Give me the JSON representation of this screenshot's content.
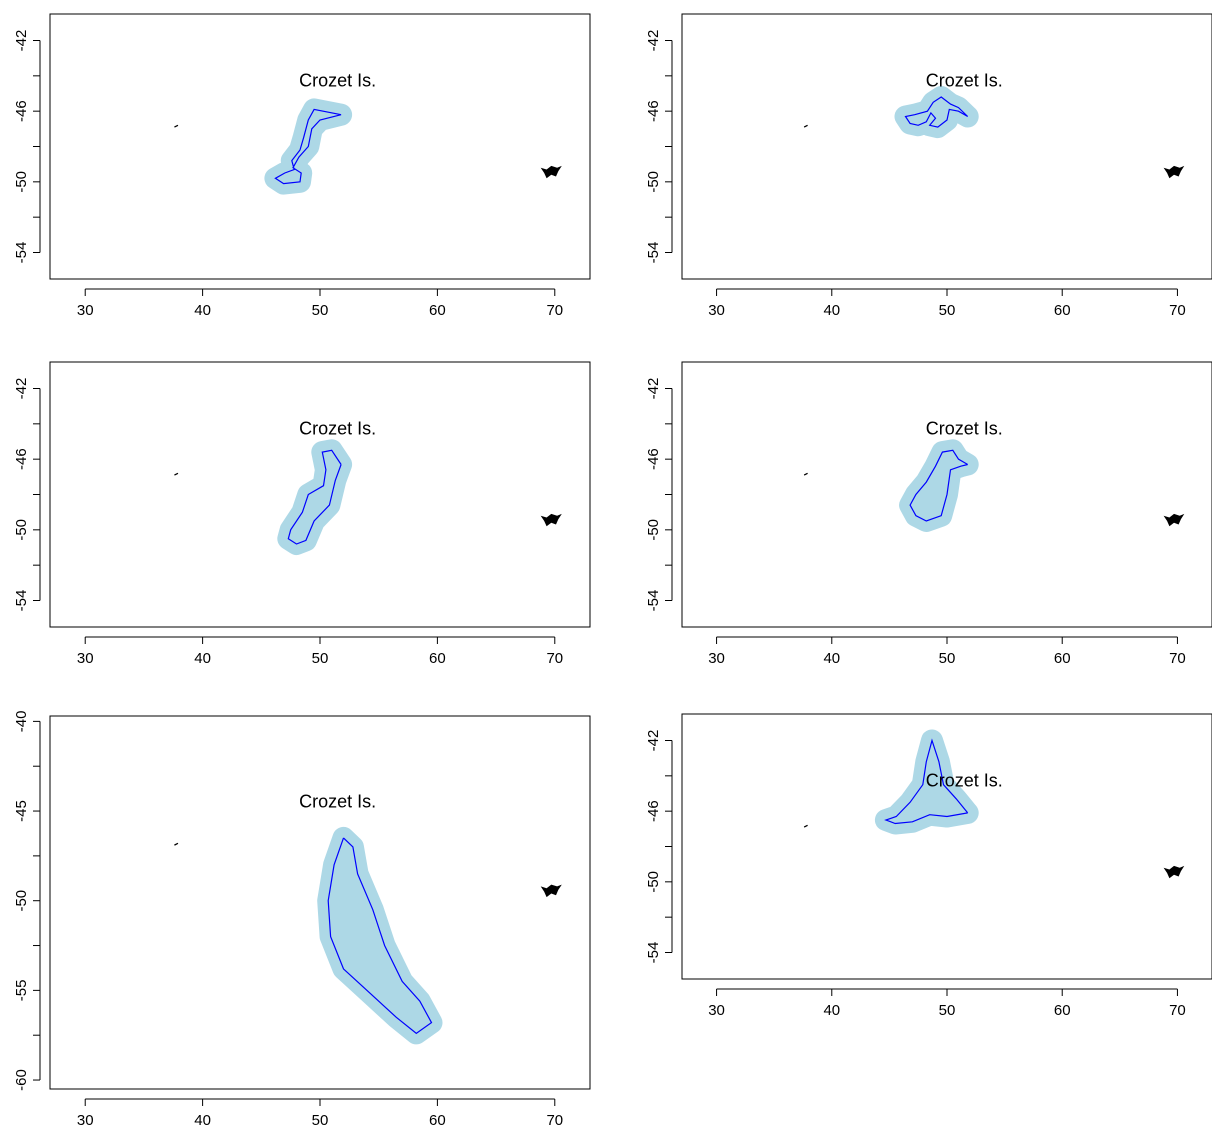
{
  "chart_data": [
    {
      "type": "map",
      "panel": "top-left",
      "xlim": [
        27,
        73
      ],
      "ylim": [
        -55.5,
        -40.5
      ],
      "x_ticks": [
        30,
        40,
        50,
        60,
        70
      ],
      "y_ticks": [
        -42,
        -46,
        -50,
        -54
      ],
      "annotation": {
        "text": "Crozet Is.",
        "lon": 51.5,
        "lat": -44.6
      },
      "buffer_color": "#add8e6",
      "track_color": "#0000ff",
      "island_color": "#000000",
      "track": [
        [
          51.8,
          -46.2
        ],
        [
          49.5,
          -45.9
        ],
        [
          49.0,
          -46.5
        ],
        [
          48.6,
          -47.5
        ],
        [
          48.3,
          -48.2
        ],
        [
          47.6,
          -48.8
        ],
        [
          47.8,
          -49.3
        ],
        [
          47.0,
          -49.5
        ],
        [
          46.2,
          -49.8
        ],
        [
          46.9,
          -50.1
        ],
        [
          48.3,
          -50.0
        ],
        [
          48.4,
          -49.5
        ],
        [
          47.7,
          -49.2
        ],
        [
          48.2,
          -48.6
        ],
        [
          49.0,
          -48.0
        ],
        [
          49.3,
          -47.0
        ],
        [
          50.0,
          -46.5
        ],
        [
          51.8,
          -46.2
        ]
      ]
    },
    {
      "type": "map",
      "panel": "top-right",
      "xlim": [
        27,
        73
      ],
      "ylim": [
        -55.5,
        -40.5
      ],
      "x_ticks": [
        30,
        40,
        50,
        60,
        70
      ],
      "y_ticks": [
        -42,
        -46,
        -50,
        -54
      ],
      "annotation": {
        "text": "Crozet Is.",
        "lon": 51.5,
        "lat": -44.6
      },
      "buffer_color": "#add8e6",
      "track_color": "#0000ff",
      "island_color": "#000000",
      "track": [
        [
          51.8,
          -46.3
        ],
        [
          51.0,
          -45.8
        ],
        [
          50.3,
          -45.6
        ],
        [
          49.5,
          -45.2
        ],
        [
          48.8,
          -45.5
        ],
        [
          48.3,
          -46.0
        ],
        [
          47.2,
          -46.2
        ],
        [
          46.4,
          -46.3
        ],
        [
          46.8,
          -46.7
        ],
        [
          47.5,
          -46.8
        ],
        [
          48.2,
          -46.6
        ],
        [
          48.6,
          -46.1
        ],
        [
          49.0,
          -46.4
        ],
        [
          48.5,
          -46.8
        ],
        [
          49.2,
          -46.9
        ],
        [
          50.0,
          -46.5
        ],
        [
          50.2,
          -45.9
        ],
        [
          51.0,
          -46.0
        ],
        [
          51.8,
          -46.3
        ]
      ]
    },
    {
      "type": "map",
      "panel": "middle-left",
      "xlim": [
        27,
        73
      ],
      "ylim": [
        -55.5,
        -40.5
      ],
      "x_ticks": [
        30,
        40,
        50,
        60,
        70
      ],
      "y_ticks": [
        -42,
        -46,
        -50,
        -54
      ],
      "annotation": {
        "text": "Crozet Is.",
        "lon": 51.5,
        "lat": -44.6
      },
      "buffer_color": "#add8e6",
      "track_color": "#0000ff",
      "island_color": "#000000",
      "track": [
        [
          51.8,
          -46.3
        ],
        [
          51.0,
          -45.5
        ],
        [
          50.2,
          -45.6
        ],
        [
          50.5,
          -46.6
        ],
        [
          50.3,
          -47.5
        ],
        [
          49.0,
          -48.0
        ],
        [
          48.5,
          -49.0
        ],
        [
          47.5,
          -50.0
        ],
        [
          47.3,
          -50.5
        ],
        [
          48.0,
          -50.8
        ],
        [
          48.8,
          -50.6
        ],
        [
          49.5,
          -49.5
        ],
        [
          50.8,
          -48.6
        ],
        [
          51.3,
          -47.2
        ],
        [
          51.8,
          -46.3
        ]
      ]
    },
    {
      "type": "map",
      "panel": "middle-right",
      "xlim": [
        27,
        73
      ],
      "ylim": [
        -55.5,
        -40.5
      ],
      "x_ticks": [
        30,
        40,
        50,
        60,
        70
      ],
      "y_ticks": [
        -42,
        -46,
        -50,
        -54
      ],
      "annotation": {
        "text": "Crozet Is.",
        "lon": 51.5,
        "lat": -44.6
      },
      "buffer_color": "#add8e6",
      "track_color": "#0000ff",
      "island_color": "#000000",
      "track": [
        [
          51.8,
          -46.3
        ],
        [
          51.0,
          -46.0
        ],
        [
          50.5,
          -45.5
        ],
        [
          49.6,
          -45.6
        ],
        [
          49.0,
          -46.4
        ],
        [
          48.2,
          -47.3
        ],
        [
          47.3,
          -48.0
        ],
        [
          46.8,
          -48.6
        ],
        [
          47.3,
          -49.2
        ],
        [
          48.2,
          -49.5
        ],
        [
          49.5,
          -49.2
        ],
        [
          50.0,
          -48.0
        ],
        [
          50.3,
          -46.6
        ],
        [
          51.2,
          -46.4
        ],
        [
          51.8,
          -46.3
        ]
      ]
    },
    {
      "type": "map",
      "panel": "bottom-left",
      "xlim": [
        27,
        73
      ],
      "ylim": [
        -60.5,
        -39.7
      ],
      "x_ticks": [
        30,
        40,
        50,
        60,
        70
      ],
      "y_ticks": [
        -40,
        -45,
        -50,
        -55,
        -60
      ],
      "annotation": {
        "text": "Crozet Is.",
        "lon": 51.5,
        "lat": -44.8
      },
      "buffer_color": "#add8e6",
      "track_color": "#0000ff",
      "island_color": "#000000",
      "track": [
        [
          52.0,
          -46.5
        ],
        [
          51.2,
          -48.0
        ],
        [
          50.7,
          -50.0
        ],
        [
          50.9,
          -52.0
        ],
        [
          52.0,
          -53.8
        ],
        [
          54.0,
          -55.0
        ],
        [
          56.5,
          -56.5
        ],
        [
          58.2,
          -57.4
        ],
        [
          59.5,
          -56.8
        ],
        [
          58.5,
          -55.6
        ],
        [
          57.0,
          -54.5
        ],
        [
          55.5,
          -52.5
        ],
        [
          54.5,
          -50.5
        ],
        [
          53.2,
          -48.5
        ],
        [
          52.8,
          -47.0
        ],
        [
          52.0,
          -46.5
        ]
      ]
    },
    {
      "type": "map",
      "panel": "bottom-right",
      "xlim": [
        27,
        73
      ],
      "ylim": [
        -55.5,
        -40.5
      ],
      "x_ticks": [
        30,
        40,
        50,
        60,
        70
      ],
      "y_ticks": [
        -42,
        -46,
        -50,
        -54
      ],
      "annotation": {
        "text": "Crozet Is.",
        "lon": 51.5,
        "lat": -44.6
      },
      "buffer_color": "#add8e6",
      "track_color": "#0000ff",
      "island_color": "#000000",
      "track": [
        [
          51.8,
          -46.1
        ],
        [
          50.8,
          -45.3
        ],
        [
          49.7,
          -44.5
        ],
        [
          49.3,
          -43.2
        ],
        [
          48.7,
          -42.0
        ],
        [
          48.2,
          -43.2
        ],
        [
          47.9,
          -44.5
        ],
        [
          46.8,
          -45.5
        ],
        [
          45.6,
          -46.3
        ],
        [
          44.7,
          -46.5
        ],
        [
          45.5,
          -46.7
        ],
        [
          47.0,
          -46.6
        ],
        [
          48.5,
          -46.2
        ],
        [
          50.0,
          -46.3
        ],
        [
          51.8,
          -46.1
        ]
      ]
    }
  ]
}
